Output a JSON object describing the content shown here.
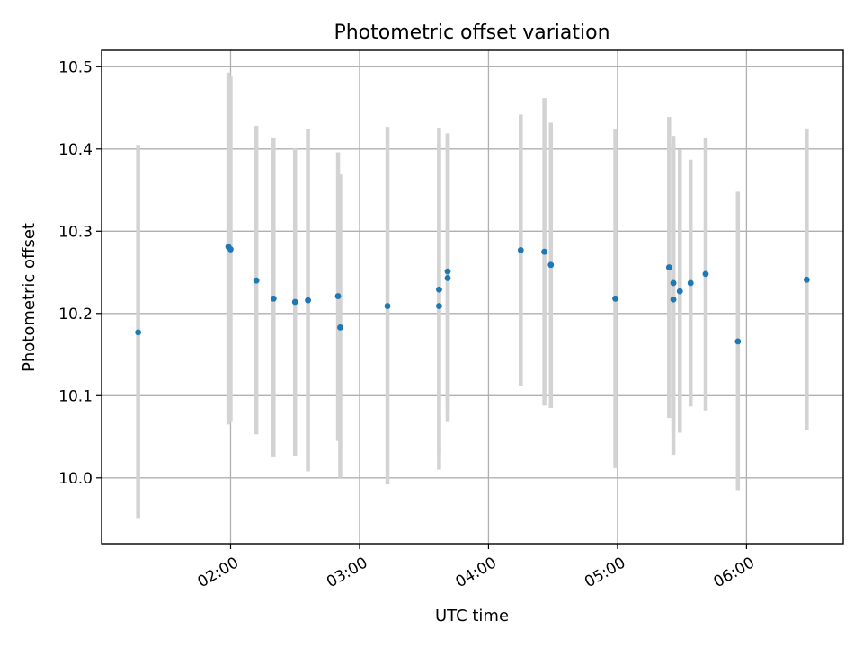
{
  "chart_data": {
    "type": "scatter",
    "title": "Photometric offset variation",
    "xlabel": "UTC time",
    "ylabel": "Photometric offset",
    "xlim": [
      "01:00",
      "06:45"
    ],
    "ylim": [
      9.92,
      10.52
    ],
    "x_ticks": [
      "02:00",
      "03:00",
      "04:00",
      "05:00",
      "06:00"
    ],
    "y_ticks": [
      10.0,
      10.1,
      10.2,
      10.3,
      10.4,
      10.5
    ],
    "grid": true,
    "colors": {
      "points": "#1f77b4",
      "errorbars": "#d3d3d3"
    },
    "points": [
      {
        "t": "01:17",
        "y": 10.177,
        "lo": 9.95,
        "hi": 10.405
      },
      {
        "t": "01:59",
        "y": 10.281,
        "lo": 10.065,
        "hi": 10.493
      },
      {
        "t": "02:00",
        "y": 10.278,
        "lo": 10.068,
        "hi": 10.488
      },
      {
        "t": "02:12",
        "y": 10.24,
        "lo": 10.053,
        "hi": 10.428
      },
      {
        "t": "02:20",
        "y": 10.218,
        "lo": 10.025,
        "hi": 10.413
      },
      {
        "t": "02:30",
        "y": 10.214,
        "lo": 10.027,
        "hi": 10.401
      },
      {
        "t": "02:36",
        "y": 10.216,
        "lo": 10.008,
        "hi": 10.424
      },
      {
        "t": "02:50",
        "y": 10.221,
        "lo": 10.045,
        "hi": 10.396
      },
      {
        "t": "02:51",
        "y": 10.183,
        "lo": 10.0,
        "hi": 10.369
      },
      {
        "t": "03:13",
        "y": 10.209,
        "lo": 9.992,
        "hi": 10.427
      },
      {
        "t": "03:37",
        "y": 10.229,
        "lo": 10.03,
        "hi": 10.426
      },
      {
        "t": "03:37",
        "y": 10.209,
        "lo": 10.01,
        "hi": 10.407
      },
      {
        "t": "03:41",
        "y": 10.251,
        "lo": 10.082,
        "hi": 10.419
      },
      {
        "t": "03:41",
        "y": 10.243,
        "lo": 10.068,
        "hi": 10.417
      },
      {
        "t": "04:15",
        "y": 10.277,
        "lo": 10.112,
        "hi": 10.442
      },
      {
        "t": "04:26",
        "y": 10.275,
        "lo": 10.088,
        "hi": 10.462
      },
      {
        "t": "04:29",
        "y": 10.259,
        "lo": 10.085,
        "hi": 10.432
      },
      {
        "t": "04:59",
        "y": 10.218,
        "lo": 10.012,
        "hi": 10.424
      },
      {
        "t": "05:24",
        "y": 10.256,
        "lo": 10.073,
        "hi": 10.439
      },
      {
        "t": "05:26",
        "y": 10.237,
        "lo": 10.058,
        "hi": 10.416
      },
      {
        "t": "05:26",
        "y": 10.217,
        "lo": 10.028,
        "hi": 10.406
      },
      {
        "t": "05:29",
        "y": 10.227,
        "lo": 10.055,
        "hi": 10.399
      },
      {
        "t": "05:34",
        "y": 10.237,
        "lo": 10.087,
        "hi": 10.387
      },
      {
        "t": "05:41",
        "y": 10.248,
        "lo": 10.082,
        "hi": 10.413
      },
      {
        "t": "05:56",
        "y": 10.166,
        "lo": 9.985,
        "hi": 10.348
      },
      {
        "t": "06:28",
        "y": 10.241,
        "lo": 10.058,
        "hi": 10.425
      }
    ]
  }
}
